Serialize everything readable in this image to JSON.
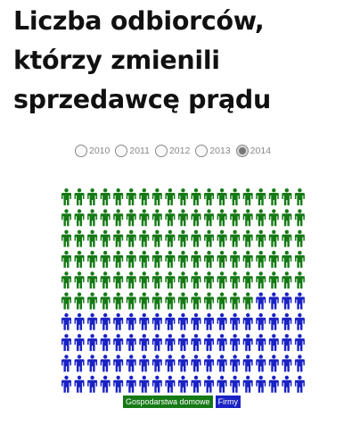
{
  "title": "Liczba odbiorców, którzy zmienili sprzedawcę prądu",
  "years": [
    {
      "label": "2010",
      "checked": false
    },
    {
      "label": "2011",
      "checked": false
    },
    {
      "label": "2012",
      "checked": false
    },
    {
      "label": "2013",
      "checked": false
    },
    {
      "label": "2014",
      "checked": true
    }
  ],
  "colors": {
    "households": "#157a15",
    "firms": "#1a22c4"
  },
  "chart_data": {
    "type": "pictogram",
    "year": "2014",
    "units_per_row": 19,
    "series": [
      {
        "name": "Gospodarstwa domowe",
        "icons": 110,
        "color": "#157a15"
      },
      {
        "name": "Firmy",
        "icons": 80,
        "color": "#1a22c4"
      }
    ]
  },
  "legend": [
    {
      "label": "Gospodarstwa domowe",
      "color": "#157a15"
    },
    {
      "label": "Firmy",
      "color": "#1a22c4"
    }
  ]
}
